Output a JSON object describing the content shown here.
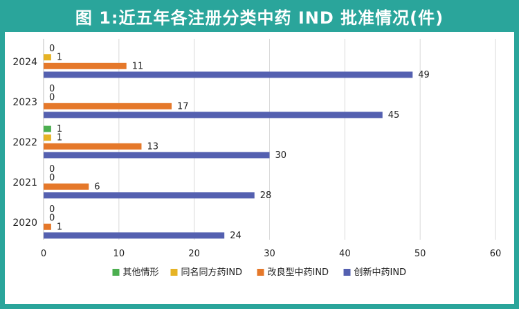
{
  "title": "图 1:近五年各注册分类中药 IND 批准情况(件)",
  "chart_data": {
    "type": "bar",
    "orientation": "horizontal",
    "title": "图 1:近五年各注册分类中药 IND 批准情况(件)",
    "categories": [
      "2024",
      "2023",
      "2022",
      "2021",
      "2020"
    ],
    "series": [
      {
        "name": "其他情形",
        "color": "#4caf50",
        "values": [
          0,
          0,
          1,
          0,
          0
        ]
      },
      {
        "name": "同名同方药IND",
        "color": "#e6b325",
        "values": [
          1,
          0,
          1,
          0,
          0
        ]
      },
      {
        "name": "改良型中药IND",
        "color": "#e5782a",
        "values": [
          11,
          17,
          13,
          6,
          1
        ]
      },
      {
        "name": "创新中药IND",
        "color": "#5460b0",
        "values": [
          49,
          45,
          30,
          28,
          24
        ]
      }
    ],
    "x_ticks": [
      "0",
      "10",
      "20",
      "30",
      "40",
      "50",
      "60"
    ],
    "xlim": [
      0,
      60
    ],
    "grid": true,
    "legend_position": "bottom"
  }
}
